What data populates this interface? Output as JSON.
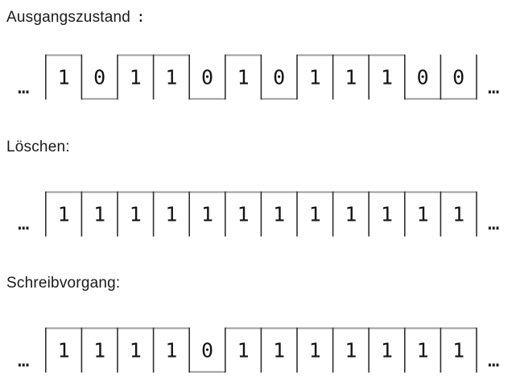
{
  "diagram": {
    "title_color": "#1a1a1a",
    "digit_color": "#141414",
    "line_color_horizontal": "#9e9e9e",
    "line_color_vertical": "#2e2e2e",
    "sections": [
      {
        "title": "Ausgangszustand",
        "colon": ":",
        "ellipsis_left": "…",
        "ellipsis_right": "…",
        "bits": [
          1,
          0,
          1,
          1,
          0,
          1,
          0,
          1,
          1,
          1,
          0,
          0
        ]
      },
      {
        "title": "Löschen",
        "colon": ":",
        "ellipsis_left": "…",
        "ellipsis_right": "…",
        "bits": [
          1,
          1,
          1,
          1,
          1,
          1,
          1,
          1,
          1,
          1,
          1,
          1
        ]
      },
      {
        "title": "Schreibvorgang",
        "colon": ":",
        "ellipsis_left": "…",
        "ellipsis_right": "…",
        "bits": [
          1,
          1,
          1,
          1,
          0,
          1,
          1,
          1,
          1,
          1,
          1,
          1
        ]
      }
    ]
  }
}
